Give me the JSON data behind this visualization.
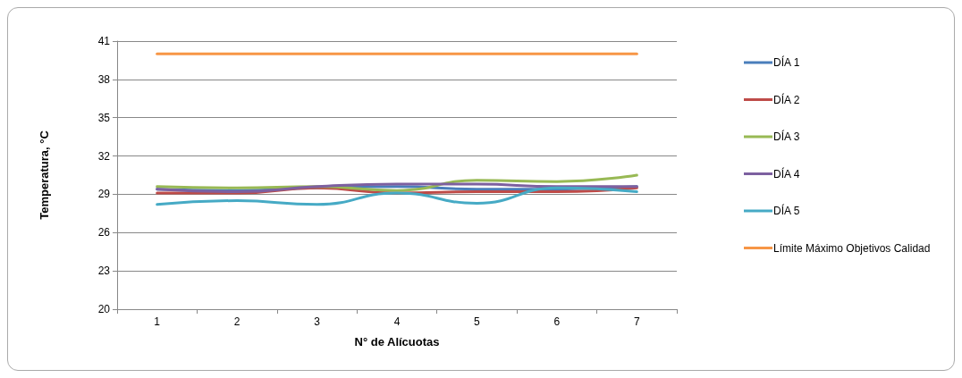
{
  "chart_data": {
    "type": "line",
    "xlabel": "N° de Alícuotas",
    "ylabel": "Temperatura, °C",
    "categories": [
      "1",
      "2",
      "3",
      "4",
      "5",
      "6",
      "7"
    ],
    "series": [
      {
        "name": "DÍA 1",
        "color": "#4a7ebb",
        "values": [
          29.4,
          29.3,
          29.5,
          29.6,
          29.4,
          29.4,
          29.6
        ]
      },
      {
        "name": "DÍA 2",
        "color": "#be4b48",
        "values": [
          29.1,
          29.1,
          29.5,
          29.1,
          29.2,
          29.2,
          29.5
        ]
      },
      {
        "name": "DÍA 3",
        "color": "#98b954",
        "values": [
          29.6,
          29.5,
          29.6,
          29.3,
          30.1,
          30.0,
          30.5
        ]
      },
      {
        "name": "DÍA 4",
        "color": "#7d60a0",
        "values": [
          29.4,
          29.2,
          29.6,
          29.8,
          29.8,
          29.6,
          29.6
        ]
      },
      {
        "name": "DÍA 5",
        "color": "#46aac5",
        "values": [
          28.2,
          28.5,
          28.2,
          29.1,
          28.3,
          29.5,
          29.2
        ]
      },
      {
        "name": "Límite Máximo Objetivos Calidad",
        "color": "#f79646",
        "values": [
          40,
          40,
          40,
          40,
          40,
          40,
          40
        ]
      }
    ],
    "ylim": [
      20,
      41
    ],
    "yticks": [
      20,
      23,
      26,
      29,
      32,
      35,
      38,
      41
    ],
    "grid": "y",
    "legend": "right",
    "marker": "none",
    "line_style": "solid"
  }
}
